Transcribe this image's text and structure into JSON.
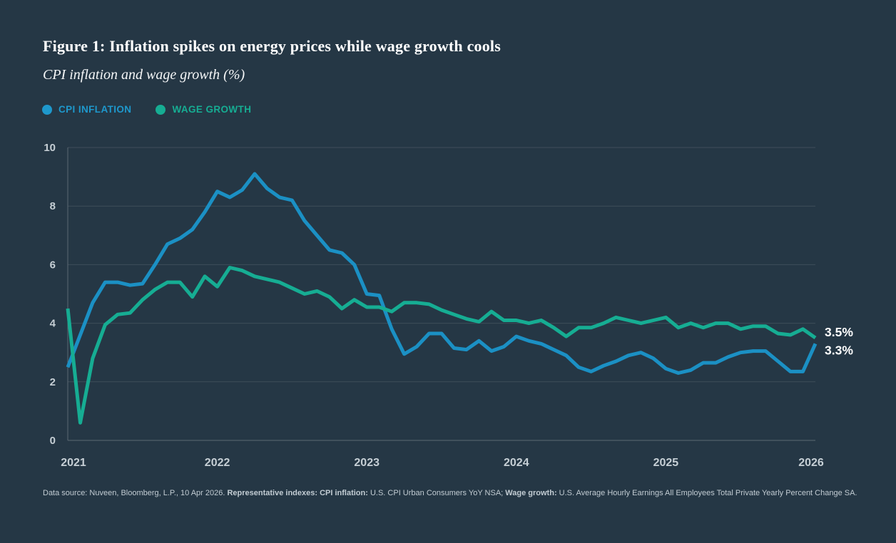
{
  "figure": {
    "title": "Figure 1: Inflation spikes on energy prices while wage growth cools",
    "subtitle": "CPI inflation and wage growth (%)"
  },
  "legend": {
    "items": [
      {
        "label": "CPI INFLATION",
        "color": "#1e98cc"
      },
      {
        "label": "WAGE GROWTH",
        "color": "#16ad93"
      }
    ]
  },
  "footer": {
    "segments": [
      {
        "text": "Data source: Nuveen, Bloomberg, L.P., 10 Apr 2026. ",
        "bold": false
      },
      {
        "text": "Representative indexes: CPI inflation:",
        "bold": true
      },
      {
        "text": " U.S. CPI Urban Consumers YoY NSA; ",
        "bold": false
      },
      {
        "text": "Wage growth:",
        "bold": true
      },
      {
        "text": " U.S. Average Hourly Earnings All Employees Total Private Yearly Percent Change SA.",
        "bold": false
      }
    ]
  },
  "colors": {
    "background": "#253745",
    "grid": "#3e4e5a",
    "axis": "#5c6a74",
    "tick_label": "#c6cfd5",
    "title_text": "#ffffff",
    "end_label_text": "#ffffff",
    "cpi_line": "#1b90c4",
    "wage_line": "#16ad93"
  },
  "chart_data": {
    "type": "line",
    "title": "CPI inflation and wage growth (%)",
    "x_unit": "month",
    "x_range": [
      "Jan 2021",
      "Jan 2026"
    ],
    "x_tick_labels": [
      "2021",
      "2022",
      "2023",
      "2024",
      "2025",
      "2026"
    ],
    "x_tick_month_indexes": [
      0,
      12,
      24,
      36,
      48,
      60
    ],
    "ylim": [
      0,
      10
    ],
    "y_ticks": [
      0,
      2,
      4,
      6,
      8,
      10
    ],
    "grid": "horizontal",
    "legend_position": "top-left",
    "series": [
      {
        "name": "CPI INFLATION",
        "color": "#1b90c4",
        "end_label": "3.3%",
        "end_value": 3.3,
        "values": [
          2.5,
          3.6,
          4.7,
          5.4,
          5.4,
          5.3,
          5.35,
          6.0,
          6.7,
          6.9,
          7.2,
          7.8,
          8.5,
          8.3,
          8.55,
          9.1,
          8.6,
          8.3,
          8.2,
          7.5,
          7.0,
          6.5,
          6.4,
          6.0,
          5.0,
          4.95,
          3.8,
          2.95,
          3.2,
          3.65,
          3.65,
          3.15,
          3.1,
          3.4,
          3.05,
          3.2,
          3.55,
          3.4,
          3.3,
          3.1,
          2.9,
          2.5,
          2.35,
          2.55,
          2.7,
          2.9,
          3.0,
          2.8,
          2.45,
          2.3,
          2.4,
          2.65,
          2.65,
          2.85,
          3.0,
          3.05,
          3.05,
          2.7,
          2.35,
          2.35,
          3.3
        ]
      },
      {
        "name": "WAGE GROWTH",
        "color": "#16ad93",
        "end_label": "3.5%",
        "end_value": 3.5,
        "values": [
          4.5,
          0.6,
          2.8,
          3.95,
          4.3,
          4.35,
          4.8,
          5.15,
          5.4,
          5.4,
          4.9,
          5.6,
          5.25,
          5.9,
          5.8,
          5.6,
          5.5,
          5.4,
          5.2,
          5.0,
          5.1,
          4.9,
          4.5,
          4.8,
          4.55,
          4.55,
          4.4,
          4.7,
          4.7,
          4.65,
          4.45,
          4.3,
          4.15,
          4.05,
          4.4,
          4.1,
          4.1,
          4.0,
          4.1,
          3.85,
          3.55,
          3.85,
          3.85,
          4.0,
          4.2,
          4.1,
          4.0,
          4.1,
          4.2,
          3.85,
          4.0,
          3.85,
          4.0,
          4.0,
          3.8,
          3.9,
          3.9,
          3.65,
          3.6,
          3.8,
          3.5
        ]
      }
    ]
  }
}
